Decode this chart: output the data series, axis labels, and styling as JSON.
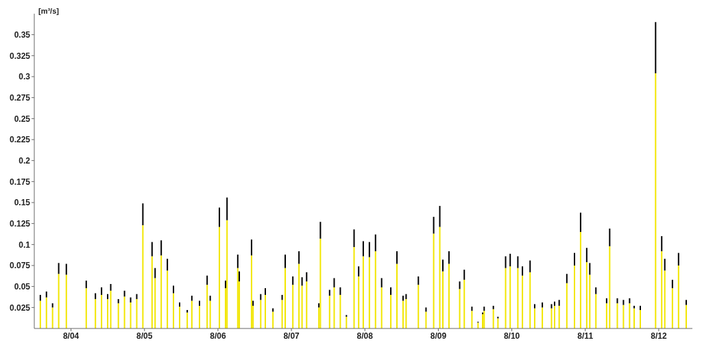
{
  "chart_data": {
    "type": "bar",
    "ylabel": "[m³/s]",
    "stacked": true,
    "x": [
      "--08-03T14:00",
      "--08-03T16:00",
      "--08-03T18:00",
      "--08-03T20:00",
      "--08-03T22:30",
      "--08-04T05:00",
      "--08-04T08:00",
      "--08-04T10:00",
      "--08-04T12:00",
      "--08-04T13:00",
      "--08-04T15:30",
      "--08-04T17:30",
      "--08-04T19:30",
      "--08-04T21:30",
      "--08-04T23:30",
      "--08-05T02:30",
      "--08-05T03:30",
      "--08-05T05:30",
      "--08-05T07:30",
      "--08-05T09:30",
      "--08-05T11:30",
      "--08-05T14:00",
      "--08-05T15:30",
      "--08-05T18:00",
      "--08-05T20:30",
      "--08-05T21:30",
      "--08-06T00:30",
      "--08-06T02:30",
      "--08-06T03:00",
      "--08-06T06:30",
      "--08-06T07:00",
      "--08-06T11:00",
      "--08-06T11:30",
      "--08-06T14:00",
      "--08-06T15:30",
      "--08-06T18:00",
      "--08-06T21:00",
      "--08-06T22:00",
      "--08-07T00:30",
      "--08-07T02:30",
      "--08-07T03:30",
      "--08-07T05:00",
      "--08-07T09:00",
      "--08-07T09:30",
      "--08-07T12:30",
      "--08-07T14:00",
      "--08-07T16:00",
      "--08-07T18:00",
      "--08-07T20:30",
      "--08-07T22:00",
      "--08-07T23:30",
      "--08-08T01:30",
      "--08-08T03:30",
      "--08-08T05:30",
      "--08-08T08:30",
      "--08-08T10:30",
      "--08-08T12:30",
      "--08-08T13:30",
      "--08-08T17:30",
      "--08-08T20:00",
      "--08-08T22:30",
      "--08-09T00:30",
      "--08-09T01:30",
      "--08-09T03:30",
      "--08-09T07:00",
      "--08-09T08:30",
      "--08-09T11:00",
      "--08-09T13:00",
      "--08-09T14:30",
      "--08-09T15:00",
      "--08-09T18:00",
      "--08-09T19:30",
      "--08-09T22:00",
      "--08-09T23:30",
      "--08-10T02:00",
      "--08-10T03:30",
      "--08-10T06:00",
      "--08-10T07:30",
      "--08-10T10:00",
      "--08-10T13:00",
      "--08-10T14:00",
      "--08-10T15:30",
      "--08-10T18:00",
      "--08-10T20:30",
      "--08-10T22:30",
      "--08-11T00:30",
      "--08-11T01:30",
      "--08-11T03:30",
      "--08-11T07:00",
      "--08-11T08:00",
      "--08-11T10:30",
      "--08-11T12:30",
      "--08-11T14:30",
      "--08-11T16:00",
      "--08-11T18:00",
      "--08-11T23:00",
      "--08-12T01:00",
      "--08-12T02:00",
      "--08-12T04:30",
      "--08-12T06:30",
      "--08-12T09:00"
    ],
    "series": [
      {
        "color": "#f2e600",
        "values": [
          0.033,
          0.037,
          0.025,
          0.065,
          0.064,
          0.048,
          0.035,
          0.04,
          0.035,
          0.045,
          0.03,
          0.038,
          0.031,
          0.035,
          0.123,
          0.086,
          0.06,
          0.087,
          0.069,
          0.042,
          0.026,
          0.019,
          0.033,
          0.027,
          0.052,
          0.033,
          0.121,
          0.048,
          0.129,
          0.072,
          0.056,
          0.087,
          0.027,
          0.034,
          0.04,
          0.02,
          0.034,
          0.072,
          0.052,
          0.077,
          0.051,
          0.056,
          0.025,
          0.107,
          0.039,
          0.049,
          0.04,
          0.014,
          0.097,
          0.062,
          0.086,
          0.085,
          0.092,
          0.049,
          0.04,
          0.077,
          0.033,
          0.035,
          0.052,
          0.02,
          0.113,
          0.121,
          0.068,
          0.077,
          0.047,
          0.058,
          0.021,
          0.007,
          0.017,
          0.021,
          0.023,
          0.012,
          0.072,
          0.074,
          0.072,
          0.063,
          0.067,
          0.024,
          0.025,
          0.024,
          0.027,
          0.027,
          0.054,
          0.075,
          0.115,
          0.079,
          0.064,
          0.041,
          0.03,
          0.098,
          0.03,
          0.028,
          0.03,
          0.024,
          0.022,
          0.304,
          0.092,
          0.069,
          0.048,
          0.075,
          0.028
        ]
      },
      {
        "color": "#000000",
        "values": [
          0.007,
          0.007,
          0.005,
          0.013,
          0.013,
          0.009,
          0.007,
          0.009,
          0.006,
          0.008,
          0.005,
          0.007,
          0.006,
          0.006,
          0.026,
          0.017,
          0.012,
          0.018,
          0.014,
          0.009,
          0.005,
          0.003,
          0.006,
          0.006,
          0.011,
          0.006,
          0.023,
          0.009,
          0.027,
          0.016,
          0.012,
          0.019,
          0.006,
          0.007,
          0.008,
          0.004,
          0.006,
          0.016,
          0.01,
          0.015,
          0.01,
          0.011,
          0.005,
          0.02,
          0.007,
          0.011,
          0.009,
          0.002,
          0.021,
          0.012,
          0.018,
          0.018,
          0.02,
          0.011,
          0.009,
          0.015,
          0.006,
          0.006,
          0.01,
          0.005,
          0.02,
          0.025,
          0.014,
          0.015,
          0.009,
          0.012,
          0.005,
          0.001,
          0.002,
          0.005,
          0.004,
          0.002,
          0.014,
          0.015,
          0.014,
          0.011,
          0.014,
          0.005,
          0.006,
          0.005,
          0.005,
          0.007,
          0.011,
          0.015,
          0.023,
          0.017,
          0.014,
          0.008,
          0.006,
          0.021,
          0.006,
          0.006,
          0.006,
          0.003,
          0.005,
          0.061,
          0.018,
          0.014,
          0.01,
          0.015,
          0.006
        ]
      }
    ],
    "xlim": [
      "--08-03T12:00",
      "--08-12T11:00"
    ],
    "xticks": [
      {
        "value": "--08-04",
        "label": "8/04"
      },
      {
        "value": "--08-05",
        "label": "8/05"
      },
      {
        "value": "--08-06",
        "label": "8/06"
      },
      {
        "value": "--08-07",
        "label": "8/07"
      },
      {
        "value": "--08-08",
        "label": "8/08"
      },
      {
        "value": "--08-09",
        "label": "8/09"
      },
      {
        "value": "--08-10",
        "label": "8/10"
      },
      {
        "value": "--08-11",
        "label": "8/11"
      },
      {
        "value": "--08-12",
        "label": "8/12"
      }
    ],
    "ylim": [
      0,
      0.375
    ],
    "yticks": [
      0.025,
      0.05,
      0.075,
      0.1,
      0.125,
      0.15,
      0.175,
      0.2,
      0.225,
      0.25,
      0.275,
      0.3,
      0.325,
      0.35
    ]
  }
}
